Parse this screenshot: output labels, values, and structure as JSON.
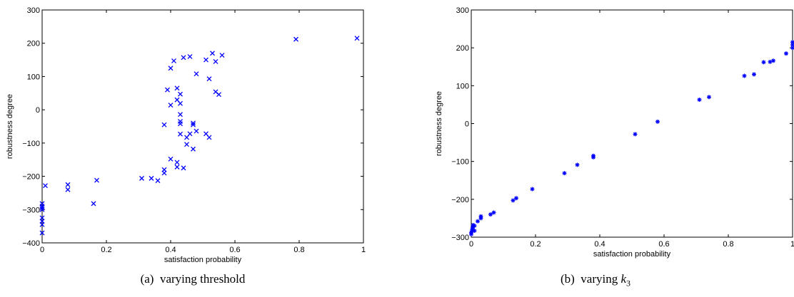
{
  "chart_data": [
    {
      "type": "scatter",
      "marker": "x",
      "color": "#0000ff",
      "xlabel": "satisfaction probability",
      "ylabel": "robustness degree",
      "xlim": [
        0,
        1
      ],
      "ylim": [
        -400,
        300
      ],
      "xticks": [
        0,
        0.2,
        0.4,
        0.6,
        0.8,
        1
      ],
      "xtick_labels": [
        "0",
        "0.2",
        "0.4",
        "0.6",
        "0.8",
        "1"
      ],
      "yticks": [
        -400,
        -300,
        -200,
        -100,
        0,
        100,
        200,
        300
      ],
      "ytick_labels": [
        "−400",
        "−300",
        "−200",
        "−100",
        "0",
        "100",
        "200",
        "300"
      ],
      "caption": {
        "prefix": "(a)",
        "text": "varying threshold"
      },
      "points": [
        [
          0.0,
          -370
        ],
        [
          0.0,
          -345
        ],
        [
          0.0,
          -335
        ],
        [
          0.0,
          -325
        ],
        [
          0.0,
          -300
        ],
        [
          0.0,
          -295
        ],
        [
          0.0,
          -290
        ],
        [
          0.0,
          -282
        ],
        [
          0.01,
          -228
        ],
        [
          0.08,
          -240
        ],
        [
          0.08,
          -225
        ],
        [
          0.16,
          -282
        ],
        [
          0.17,
          -212
        ],
        [
          0.31,
          -206
        ],
        [
          0.34,
          -206
        ],
        [
          0.36,
          -213
        ],
        [
          0.38,
          -190
        ],
        [
          0.38,
          -180
        ],
        [
          0.38,
          -45
        ],
        [
          0.39,
          60
        ],
        [
          0.4,
          125
        ],
        [
          0.4,
          14
        ],
        [
          0.4,
          -148
        ],
        [
          0.41,
          147
        ],
        [
          0.42,
          -158
        ],
        [
          0.42,
          -172
        ],
        [
          0.42,
          65
        ],
        [
          0.42,
          30
        ],
        [
          0.43,
          47
        ],
        [
          0.43,
          19
        ],
        [
          0.43,
          -14
        ],
        [
          0.43,
          -35
        ],
        [
          0.43,
          -42
        ],
        [
          0.43,
          -73
        ],
        [
          0.44,
          157
        ],
        [
          0.44,
          -175
        ],
        [
          0.45,
          -83
        ],
        [
          0.45,
          -104
        ],
        [
          0.46,
          160
        ],
        [
          0.46,
          -72
        ],
        [
          0.47,
          -40
        ],
        [
          0.47,
          -45
        ],
        [
          0.47,
          -118
        ],
        [
          0.48,
          108
        ],
        [
          0.48,
          -64
        ],
        [
          0.51,
          150
        ],
        [
          0.51,
          -72
        ],
        [
          0.52,
          93
        ],
        [
          0.52,
          -83
        ],
        [
          0.53,
          170
        ],
        [
          0.54,
          145
        ],
        [
          0.54,
          54
        ],
        [
          0.55,
          46
        ],
        [
          0.56,
          164
        ],
        [
          0.79,
          212
        ],
        [
          0.98,
          215
        ]
      ]
    },
    {
      "type": "scatter",
      "marker": "*",
      "color": "#0000ff",
      "xlabel": "satisfaction probability",
      "ylabel": "robustness degree",
      "xlim": [
        0,
        1
      ],
      "ylim": [
        -300,
        300
      ],
      "xticks": [
        0,
        0.2,
        0.4,
        0.6,
        0.8,
        1
      ],
      "xtick_labels": [
        "0",
        "0.2",
        "0.4",
        "0.6",
        "0.8",
        "1"
      ],
      "yticks": [
        -300,
        -200,
        -100,
        0,
        100,
        200,
        300
      ],
      "ytick_labels": [
        "−300",
        "−200",
        "−100",
        "0",
        "100",
        "200",
        "300"
      ],
      "caption": {
        "prefix": "(b)",
        "text": "varying ",
        "var": "k",
        "sub": "3"
      },
      "points": [
        [
          0.0,
          -292
        ],
        [
          0.0,
          -288
        ],
        [
          0.002,
          -284
        ],
        [
          0.003,
          -280
        ],
        [
          0.004,
          -276
        ],
        [
          0.005,
          -272
        ],
        [
          0.006,
          -268
        ],
        [
          0.01,
          -283
        ],
        [
          0.01,
          -270
        ],
        [
          0.02,
          -258
        ],
        [
          0.03,
          -250
        ],
        [
          0.03,
          -245
        ],
        [
          0.06,
          -240
        ],
        [
          0.07,
          -235
        ],
        [
          0.13,
          -203
        ],
        [
          0.14,
          -197
        ],
        [
          0.19,
          -173
        ],
        [
          0.29,
          -131
        ],
        [
          0.33,
          -109
        ],
        [
          0.38,
          -89
        ],
        [
          0.38,
          -85
        ],
        [
          0.51,
          -28
        ],
        [
          0.58,
          5
        ],
        [
          0.71,
          63
        ],
        [
          0.74,
          70
        ],
        [
          0.85,
          126
        ],
        [
          0.88,
          130
        ],
        [
          0.91,
          162
        ],
        [
          0.93,
          163
        ],
        [
          0.94,
          166
        ],
        [
          0.98,
          185
        ],
        [
          1.0,
          200
        ],
        [
          1.0,
          208
        ],
        [
          1.0,
          215
        ]
      ]
    }
  ]
}
